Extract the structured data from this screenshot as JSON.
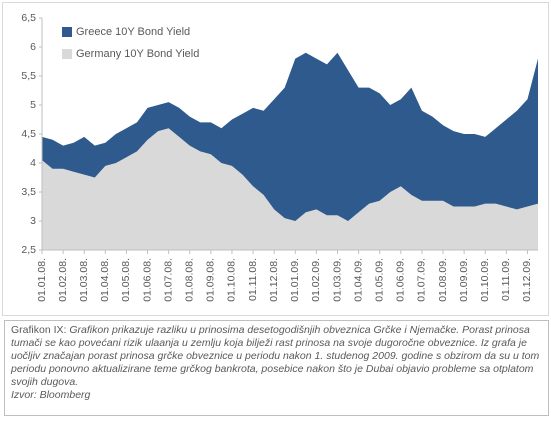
{
  "chart_data": {
    "type": "area",
    "categories": [
      "01.01.08.",
      null,
      "01.02.08.",
      null,
      "01.03.08.",
      null,
      "01.04.08.",
      null,
      "01.05.08.",
      null,
      "01.06.08.",
      null,
      "01.07.08.",
      null,
      "01.08.08.",
      null,
      "01.09.08.",
      null,
      "01.10.08.",
      null,
      "01.11.08.",
      null,
      "01.12.08.",
      null,
      "01.01.09.",
      null,
      "01.02.09.",
      null,
      "01.03.09.",
      null,
      "01.04.09.",
      null,
      "01.05.09.",
      null,
      "01.06.09.",
      null,
      "01.07.09.",
      null,
      "01.08.09.",
      null,
      "01.09.09.",
      null,
      "01.10.09.",
      null,
      "01.11.09.",
      null,
      "01.12.09.",
      null
    ],
    "series": [
      {
        "name": "Greece 10Y Bond Yield",
        "color": "#2e5a8e",
        "values": [
          4.45,
          4.4,
          4.3,
          4.35,
          4.45,
          4.3,
          4.35,
          4.5,
          4.6,
          4.7,
          4.95,
          5.0,
          5.05,
          4.95,
          4.8,
          4.7,
          4.7,
          4.6,
          4.75,
          4.85,
          4.95,
          4.9,
          5.1,
          5.3,
          5.8,
          5.9,
          5.8,
          5.7,
          5.9,
          5.6,
          5.3,
          5.3,
          5.2,
          5.0,
          5.1,
          5.3,
          4.9,
          4.8,
          4.65,
          4.55,
          4.5,
          4.5,
          4.45,
          4.6,
          4.75,
          4.9,
          5.1,
          5.8
        ]
      },
      {
        "name": "Germany 10Y Bond Yield",
        "color": "#d9d9d9",
        "values": [
          4.05,
          3.9,
          3.9,
          3.85,
          3.8,
          3.75,
          3.95,
          4.0,
          4.1,
          4.2,
          4.4,
          4.55,
          4.6,
          4.45,
          4.3,
          4.2,
          4.15,
          4.0,
          3.95,
          3.8,
          3.6,
          3.45,
          3.2,
          3.05,
          3.0,
          3.15,
          3.2,
          3.1,
          3.1,
          3.0,
          3.15,
          3.3,
          3.35,
          3.5,
          3.6,
          3.45,
          3.35,
          3.35,
          3.35,
          3.25,
          3.25,
          3.25,
          3.3,
          3.3,
          3.25,
          3.2,
          3.25,
          3.3
        ]
      }
    ],
    "ylim": [
      2.5,
      6.5
    ],
    "yticks": [
      {
        "value": 2.5,
        "label": "2,5"
      },
      3,
      {
        "value": 3.5,
        "label": "3,5"
      },
      4,
      {
        "value": 4.5,
        "label": "4,5"
      },
      5,
      {
        "value": 5.5,
        "label": "5,5"
      },
      6,
      {
        "value": 6.5,
        "label": "6,5"
      }
    ],
    "grid": false,
    "legend": "top-left"
  },
  "caption": {
    "label": "Grafikon IX:",
    "text": "Grafikon prikazuje razliku u prinosima desetogodišnjih obveznica Grčke i Njemačke. Porast prinosa tumači se kao povećani rizik ulaanja u zemlju koja bilježi rast prinosa na svoje dugoročne obveznice.  Iz grafa je uočljiv značajan porast prinosa grčke obveznice u periodu nakon 1. studenog 2009. godine s obzirom da su u tom periodu ponovno aktualizirane teme grčkog bankrota, posebice nakon što je Dubai objavio probleme sa otplatom svojih dugova.",
    "source": "Izvor: Bloomberg"
  }
}
